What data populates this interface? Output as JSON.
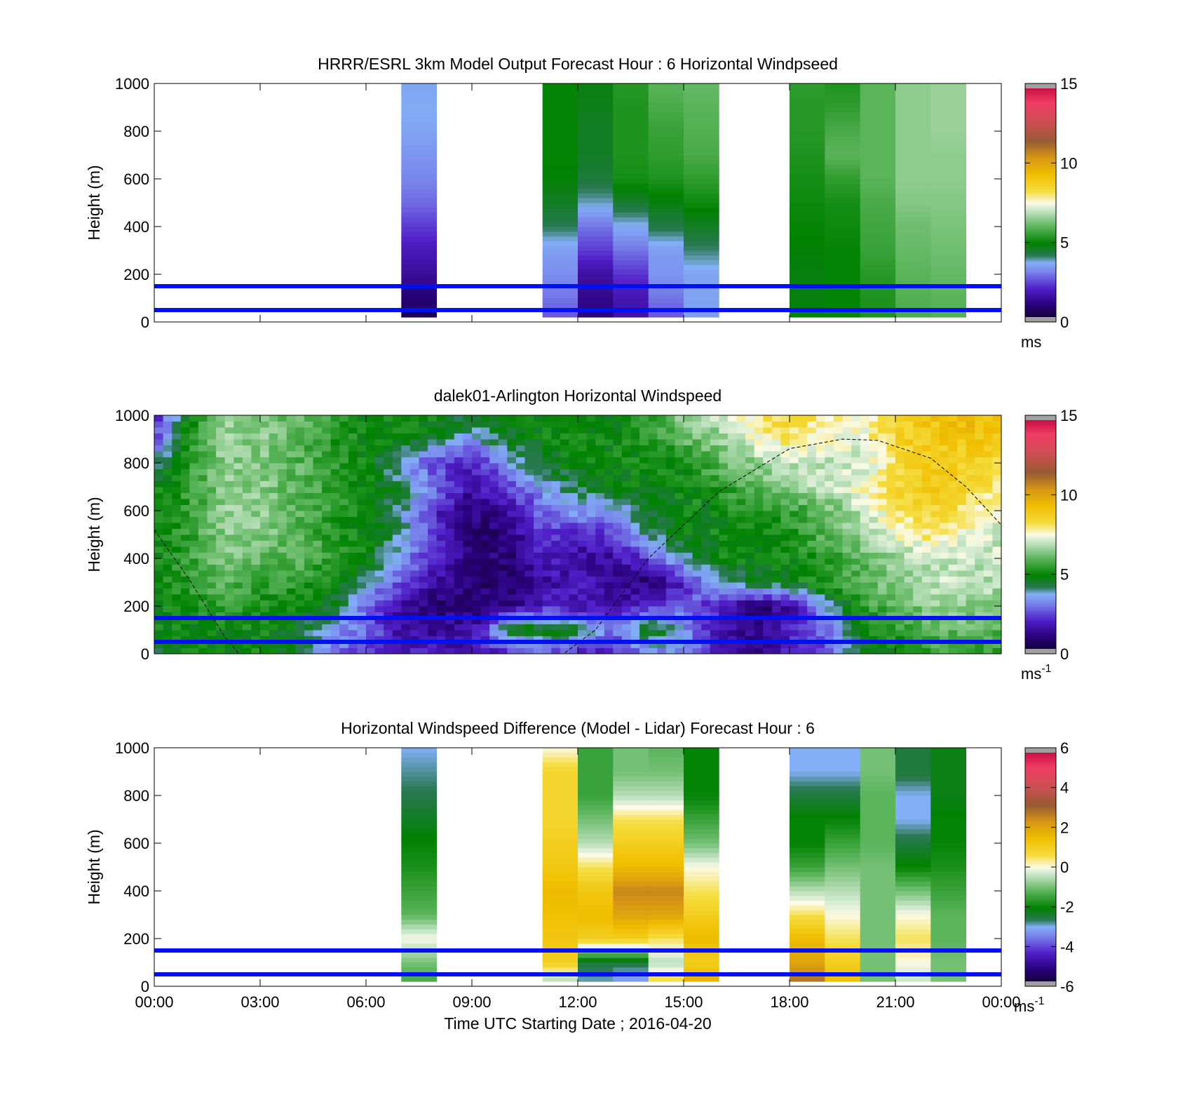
{
  "figure": {
    "xlabel": "Time UTC  Starting Date ; 2016-04-20"
  },
  "chart_data": [
    {
      "type": "heatmap",
      "title": "HRRR/ESRL 3km Model Output   Forecast Hour : 6 Horizontal Windpseed",
      "ylabel": "Height (m)",
      "x_ticks": [
        "00:00",
        "03:00",
        "06:00",
        "09:00",
        "12:00",
        "15:00",
        "18:00",
        "21:00",
        "00:00"
      ],
      "y_ticks": [
        "0",
        "200",
        "400",
        "600",
        "800",
        "1000"
      ],
      "ylim": [
        0,
        1000
      ],
      "colorbar": {
        "ticks": [
          "0",
          "5",
          "10",
          "15"
        ],
        "min": 0,
        "max": 15,
        "unit": "ms",
        "unit_sup": ""
      },
      "reference_lines_m": [
        50,
        150
      ],
      "column_hours": [
        7.0,
        11.0,
        12.0,
        13.0,
        14.0,
        15.0,
        18.0,
        19.0,
        20.0,
        21.0,
        22.0
      ],
      "column_width_h": 1.0,
      "profiles": [
        [
          0.5,
          1.0,
          1.5,
          1.9,
          2.4,
          2.9,
          3.2,
          3.4,
          3.6,
          3.7,
          3.6
        ],
        [
          2.6,
          3.0,
          3.3,
          3.5,
          4.2,
          4.6,
          4.9,
          5.0,
          5.0,
          5.0,
          5.0
        ],
        [
          1.0,
          1.3,
          1.6,
          2.4,
          3.0,
          3.9,
          4.4,
          4.6,
          4.6,
          4.7,
          4.8
        ],
        [
          1.6,
          1.8,
          2.3,
          3.0,
          3.7,
          4.5,
          5.2,
          5.3,
          5.3,
          5.3,
          5.4
        ],
        [
          2.6,
          3.0,
          3.4,
          3.5,
          4.3,
          4.8,
          5.3,
          5.5,
          5.6,
          5.8,
          6.0
        ],
        [
          3.5,
          3.6,
          3.6,
          4.1,
          4.6,
          5.1,
          5.5,
          5.8,
          5.9,
          6.0,
          6.1
        ],
        [
          5.0,
          4.8,
          4.8,
          4.9,
          5.0,
          5.1,
          5.2,
          5.3,
          5.4,
          5.4,
          5.5
        ],
        [
          5.0,
          5.0,
          5.0,
          5.0,
          5.1,
          5.2,
          5.5,
          6.0,
          5.8,
          5.5,
          5.3
        ],
        [
          5.3,
          5.3,
          5.4,
          5.6,
          5.7,
          5.8,
          6.0,
          6.0,
          6.0,
          6.0,
          6.0
        ],
        [
          5.8,
          5.9,
          6.0,
          6.1,
          6.2,
          6.4,
          6.5,
          6.5,
          6.5,
          6.5,
          6.5
        ],
        [
          5.9,
          6.0,
          6.1,
          6.2,
          6.3,
          6.4,
          6.5,
          6.5,
          6.6,
          6.6,
          6.6
        ]
      ]
    },
    {
      "type": "heatmap",
      "title": "dalek01-Arlington  Horizontal Windspeed",
      "ylabel": "Height (m)",
      "x_ticks": [
        "00:00",
        "03:00",
        "06:00",
        "09:00",
        "12:00",
        "15:00",
        "18:00",
        "21:00",
        "00:00"
      ],
      "y_ticks": [
        "0",
        "200",
        "400",
        "600",
        "800",
        "1000"
      ],
      "ylim": [
        0,
        1000
      ],
      "colorbar": {
        "ticks": [
          "0",
          "5",
          "10",
          "15"
        ],
        "min": 0,
        "max": 15,
        "unit": "ms",
        "unit_sup": "-1"
      },
      "reference_lines_m": [
        50,
        150
      ],
      "time_resolution_h": 0.25,
      "height_resolution_m": 25,
      "field_hours": [
        0,
        1,
        2,
        3,
        4,
        5,
        6,
        7,
        8,
        9,
        10,
        11,
        12,
        13,
        14,
        15,
        16,
        17,
        18,
        19,
        20,
        21,
        22,
        23,
        24
      ],
      "field_heights": [
        0,
        100,
        200,
        300,
        400,
        500,
        600,
        700,
        800,
        900,
        1000
      ],
      "field_ms": [
        [
          4.5,
          5.0,
          5.0,
          5.0,
          4.5,
          3.0,
          2.5,
          2.0,
          2.0,
          1.8,
          2.0,
          2.5,
          2.0,
          2.0,
          3.0,
          3.5,
          1.5,
          1.0,
          2.0,
          2.5,
          4.5,
          5.0,
          5.5,
          5.5,
          5.5
        ],
        [
          5.0,
          5.0,
          5.0,
          5.0,
          4.8,
          3.5,
          3.0,
          1.5,
          1.5,
          1.5,
          4.5,
          5.0,
          4.5,
          3.0,
          5.0,
          3.5,
          1.8,
          1.2,
          2.0,
          3.0,
          5.0,
          5.5,
          6.0,
          6.0,
          6.0
        ],
        [
          5.0,
          5.2,
          5.5,
          5.2,
          5.0,
          4.8,
          3.0,
          1.5,
          1.0,
          1.0,
          1.2,
          2.0,
          1.8,
          1.5,
          2.0,
          3.0,
          2.0,
          1.0,
          1.5,
          3.5,
          5.5,
          6.0,
          6.5,
          6.5,
          6.5
        ],
        [
          5.0,
          5.5,
          6.0,
          5.5,
          5.5,
          5.0,
          4.0,
          2.5,
          1.5,
          1.0,
          1.0,
          1.5,
          2.0,
          1.5,
          1.0,
          2.0,
          4.0,
          4.5,
          4.8,
          5.5,
          6.0,
          6.5,
          7.0,
          7.0,
          6.8
        ],
        [
          5.0,
          5.5,
          6.5,
          6.0,
          6.0,
          5.5,
          5.0,
          3.5,
          2.0,
          1.2,
          1.0,
          2.0,
          1.5,
          1.5,
          2.5,
          4.0,
          5.0,
          5.0,
          5.0,
          5.5,
          6.0,
          6.5,
          7.0,
          7.0,
          7.0
        ],
        [
          5.0,
          5.5,
          6.5,
          6.5,
          6.0,
          5.5,
          5.0,
          4.0,
          2.0,
          1.0,
          1.0,
          2.5,
          2.0,
          2.5,
          4.0,
          5.0,
          5.0,
          5.0,
          5.2,
          6.0,
          6.5,
          7.5,
          8.0,
          7.5,
          7.0
        ],
        [
          5.0,
          5.5,
          6.5,
          6.5,
          6.0,
          5.5,
          5.0,
          4.0,
          2.0,
          1.2,
          1.5,
          3.0,
          3.5,
          3.5,
          4.5,
          5.0,
          5.0,
          5.5,
          5.5,
          6.0,
          7.0,
          8.0,
          8.5,
          8.0,
          7.5
        ],
        [
          5.0,
          5.5,
          6.5,
          6.5,
          6.0,
          5.5,
          5.0,
          4.5,
          3.0,
          1.5,
          2.5,
          3.5,
          4.5,
          4.8,
          5.0,
          5.0,
          5.5,
          6.0,
          6.5,
          7.0,
          7.5,
          8.5,
          9.0,
          8.5,
          8.0
        ],
        [
          4.0,
          5.5,
          6.5,
          6.5,
          6.0,
          5.5,
          5.0,
          3.5,
          2.5,
          2.0,
          3.5,
          4.5,
          5.0,
          5.0,
          5.0,
          5.2,
          6.0,
          6.5,
          7.0,
          7.0,
          7.0,
          8.0,
          9.0,
          8.5,
          8.5
        ],
        [
          2.5,
          5.5,
          6.5,
          6.5,
          6.0,
          5.5,
          5.0,
          5.0,
          4.5,
          3.5,
          4.5,
          5.0,
          5.0,
          5.0,
          5.5,
          6.0,
          6.5,
          7.5,
          8.0,
          7.5,
          7.5,
          8.5,
          9.0,
          9.0,
          9.0
        ],
        [
          2.0,
          5.0,
          6.5,
          6.5,
          6.0,
          5.5,
          5.0,
          5.0,
          5.0,
          4.5,
          5.0,
          5.0,
          5.0,
          5.0,
          5.5,
          6.5,
          7.0,
          8.0,
          8.5,
          8.0,
          7.5,
          8.5,
          9.0,
          9.5,
          9.0
        ]
      ],
      "dashed_curve": [
        [
          0,
          520
        ],
        [
          1,
          310
        ],
        [
          2,
          70
        ],
        [
          2.4,
          0
        ],
        [
          11.6,
          0
        ],
        [
          12.5,
          100
        ],
        [
          14,
          400
        ],
        [
          16,
          680
        ],
        [
          18,
          860
        ],
        [
          19.5,
          900
        ],
        [
          20.5,
          895
        ],
        [
          22,
          820
        ],
        [
          23,
          700
        ],
        [
          24,
          540
        ]
      ]
    },
    {
      "type": "heatmap",
      "title": "Horizontal Windspeed Difference (Model - Lidar) Forecast Hour : 6",
      "ylabel": "Height (m)",
      "x_ticks": [
        "00:00",
        "03:00",
        "06:00",
        "09:00",
        "12:00",
        "15:00",
        "18:00",
        "21:00",
        "00:00"
      ],
      "y_ticks": [
        "0",
        "200",
        "400",
        "600",
        "800",
        "1000"
      ],
      "ylim": [
        0,
        1000
      ],
      "colorbar": {
        "ticks": [
          "-6",
          "-4",
          "-2",
          "0",
          "2",
          "4",
          "6"
        ],
        "min": -6,
        "max": 6,
        "unit": "ms",
        "unit_sup": "-1"
      },
      "reference_lines_m": [
        50,
        150
      ],
      "column_hours": [
        7.0,
        11.0,
        12.0,
        13.0,
        14.0,
        15.0,
        18.0,
        19.0,
        20.0,
        21.0,
        22.0
      ],
      "column_width_h": 1.0,
      "profiles": [
        [
          -1.5,
          -1.0,
          0.0,
          -1.2,
          -1.5,
          -1.8,
          -2.0,
          -2.3,
          -2.6,
          -2.8,
          -3.0
        ],
        [
          -1.0,
          1.0,
          1.2,
          1.4,
          1.5,
          1.2,
          1.0,
          0.8,
          0.8,
          0.8,
          0.0
        ],
        [
          -3.0,
          -2.5,
          1.0,
          1.5,
          1.2,
          0.5,
          -0.5,
          -1.0,
          -1.5,
          -1.5,
          -1.5
        ],
        [
          -3.5,
          -2.5,
          1.0,
          2.0,
          2.5,
          1.5,
          1.0,
          0.5,
          -0.5,
          -1.0,
          -1.0
        ],
        [
          1.0,
          -0.5,
          0.5,
          2.0,
          2.5,
          1.5,
          1.0,
          0.5,
          -0.5,
          -1.0,
          -1.2
        ],
        [
          2.0,
          1.0,
          1.5,
          1.0,
          0.5,
          0.0,
          -1.0,
          -1.5,
          -2.0,
          -2.0,
          -2.0
        ],
        [
          3.0,
          2.0,
          1.5,
          0.5,
          -0.5,
          -1.5,
          -2.0,
          -2.0,
          -2.5,
          -3.0,
          -3.0
        ],
        [
          1.5,
          1.0,
          0.5,
          0.0,
          -0.5,
          -1.0,
          -1.5,
          -2.0,
          -2.5,
          -3.0,
          -3.0
        ],
        [
          -1.0,
          -1.0,
          -1.0,
          -1.0,
          -1.0,
          -1.0,
          -1.2,
          -1.2,
          -1.2,
          -1.0,
          -1.0
        ],
        [
          -0.5,
          0.0,
          0.5,
          0.0,
          -1.0,
          -2.0,
          -2.5,
          -3.0,
          -3.0,
          -2.5,
          -2.5
        ],
        [
          -1.0,
          -1.0,
          -1.2,
          -1.2,
          -1.5,
          -1.8,
          -2.0,
          -2.0,
          -2.2,
          -2.2,
          -2.2
        ]
      ]
    }
  ]
}
